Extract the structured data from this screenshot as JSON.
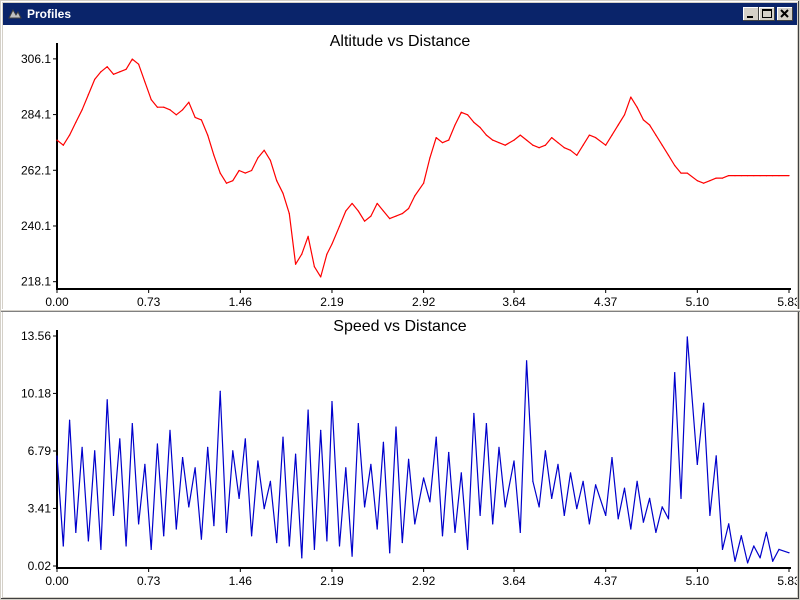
{
  "window": {
    "title": "Profiles",
    "icon": "app-icon",
    "controls": [
      "minimize-icon",
      "maximize-icon",
      "close-icon"
    ]
  },
  "chart_data": [
    {
      "type": "line",
      "title": "Altitude vs Distance",
      "xlabel": "",
      "ylabel": "",
      "line_color": "#ff0000",
      "x_ticks": [
        "0.00",
        "0.73",
        "1.46",
        "2.19",
        "2.92",
        "3.64",
        "4.37",
        "5.10",
        "5.83"
      ],
      "y_ticks": [
        "218.1",
        "240.1",
        "262.1",
        "284.1",
        "306.1"
      ],
      "xlim": [
        0,
        5.83
      ],
      "ylim": [
        216,
        310
      ],
      "x": [
        0.0,
        0.05,
        0.1,
        0.15,
        0.2,
        0.25,
        0.3,
        0.35,
        0.4,
        0.45,
        0.5,
        0.55,
        0.6,
        0.65,
        0.7,
        0.75,
        0.8,
        0.85,
        0.9,
        0.95,
        1.0,
        1.05,
        1.1,
        1.15,
        1.2,
        1.25,
        1.3,
        1.35,
        1.4,
        1.45,
        1.5,
        1.55,
        1.6,
        1.65,
        1.7,
        1.75,
        1.8,
        1.85,
        1.9,
        1.95,
        2.0,
        2.05,
        2.1,
        2.15,
        2.19,
        2.25,
        2.3,
        2.35,
        2.4,
        2.45,
        2.5,
        2.55,
        2.6,
        2.65,
        2.7,
        2.75,
        2.8,
        2.85,
        2.92,
        2.97,
        3.02,
        3.07,
        3.12,
        3.17,
        3.22,
        3.27,
        3.32,
        3.37,
        3.42,
        3.47,
        3.52,
        3.57,
        3.64,
        3.69,
        3.74,
        3.79,
        3.84,
        3.89,
        3.94,
        3.99,
        4.04,
        4.09,
        4.14,
        4.19,
        4.24,
        4.29,
        4.37,
        4.42,
        4.47,
        4.52,
        4.57,
        4.62,
        4.67,
        4.72,
        4.77,
        4.82,
        4.87,
        4.92,
        4.97,
        5.02,
        5.1,
        5.15,
        5.2,
        5.25,
        5.3,
        5.35,
        5.4,
        5.45,
        5.5,
        5.55,
        5.6,
        5.65,
        5.7,
        5.75,
        5.83
      ],
      "values": [
        274,
        272,
        276,
        281,
        286,
        292,
        298,
        301,
        303,
        300,
        301,
        302,
        306,
        304,
        297,
        290,
        287,
        287,
        286,
        284,
        286,
        289,
        283,
        282,
        276,
        268,
        261,
        257,
        258,
        262,
        261,
        262,
        267,
        270,
        266,
        258,
        253,
        245,
        225,
        229,
        236,
        224,
        220,
        229,
        233,
        240,
        246,
        249,
        246,
        242,
        244,
        249,
        246,
        243,
        244,
        245,
        247,
        252,
        257,
        267,
        275,
        273,
        274,
        280,
        285,
        284,
        281,
        279,
        276,
        274,
        273,
        272,
        274,
        276,
        274,
        272,
        271,
        272,
        275,
        273,
        271,
        270,
        268,
        272,
        276,
        275,
        272,
        276,
        280,
        284,
        291,
        287,
        282,
        280,
        276,
        272,
        268,
        264,
        261,
        261,
        258,
        257,
        258,
        259,
        259,
        260,
        260,
        260,
        260,
        260,
        260,
        260,
        260,
        260,
        260
      ],
      "values_note_none": ""
    },
    {
      "type": "line",
      "title": "Speed vs Distance",
      "xlabel": "",
      "ylabel": "",
      "line_color": "#0000cc",
      "x_ticks": [
        "0.00",
        "0.73",
        "1.46",
        "2.19",
        "2.92",
        "3.64",
        "4.37",
        "5.10",
        "5.83"
      ],
      "y_ticks": [
        "0.02",
        "3.41",
        "6.79",
        "10.18",
        "13.56"
      ],
      "xlim": [
        0,
        5.83
      ],
      "ylim": [
        0.02,
        13.56
      ],
      "x": [
        0.0,
        0.05,
        0.1,
        0.15,
        0.2,
        0.25,
        0.3,
        0.35,
        0.4,
        0.45,
        0.5,
        0.55,
        0.6,
        0.65,
        0.7,
        0.75,
        0.8,
        0.85,
        0.9,
        0.95,
        1.0,
        1.05,
        1.1,
        1.15,
        1.2,
        1.25,
        1.3,
        1.35,
        1.4,
        1.45,
        1.5,
        1.55,
        1.6,
        1.65,
        1.7,
        1.75,
        1.8,
        1.85,
        1.9,
        1.95,
        2.0,
        2.05,
        2.1,
        2.15,
        2.19,
        2.25,
        2.3,
        2.35,
        2.4,
        2.45,
        2.5,
        2.55,
        2.6,
        2.65,
        2.7,
        2.75,
        2.8,
        2.85,
        2.92,
        2.97,
        3.02,
        3.07,
        3.12,
        3.17,
        3.22,
        3.27,
        3.32,
        3.37,
        3.42,
        3.47,
        3.52,
        3.57,
        3.64,
        3.69,
        3.74,
        3.79,
        3.84,
        3.89,
        3.94,
        3.99,
        4.04,
        4.09,
        4.14,
        4.19,
        4.24,
        4.29,
        4.37,
        4.42,
        4.47,
        4.52,
        4.57,
        4.62,
        4.67,
        4.72,
        4.77,
        4.82,
        4.87,
        4.92,
        4.97,
        5.02,
        5.1,
        5.15,
        5.2,
        5.25,
        5.3,
        5.35,
        5.4,
        5.45,
        5.5,
        5.55,
        5.6,
        5.65,
        5.7,
        5.75,
        5.83
      ],
      "values": [
        6.5,
        1.2,
        8.6,
        2.0,
        7.0,
        1.5,
        6.8,
        1.0,
        9.8,
        3.0,
        7.5,
        1.2,
        8.4,
        2.5,
        6.0,
        1.0,
        7.2,
        1.8,
        8.0,
        2.2,
        6.4,
        3.5,
        5.8,
        1.6,
        7.0,
        2.4,
        10.3,
        2.0,
        6.8,
        4.0,
        7.5,
        1.8,
        6.2,
        3.4,
        5.0,
        1.4,
        7.6,
        1.2,
        6.6,
        0.5,
        9.2,
        1.0,
        8.0,
        1.5,
        9.7,
        1.2,
        5.8,
        0.6,
        8.4,
        3.5,
        6.0,
        2.2,
        7.3,
        0.8,
        8.2,
        1.4,
        6.3,
        2.5,
        5.2,
        3.8,
        7.6,
        1.8,
        6.7,
        2.0,
        5.5,
        1.0,
        9.0,
        3.0,
        8.4,
        2.5,
        7.0,
        3.5,
        6.2,
        2.0,
        12.1,
        5.0,
        3.5,
        6.8,
        4.0,
        6.0,
        3.0,
        5.5,
        3.4,
        5.0,
        2.5,
        4.8,
        3.0,
        6.4,
        2.8,
        4.6,
        2.2,
        5.0,
        2.6,
        4.0,
        2.0,
        3.5,
        2.8,
        11.4,
        4.0,
        13.5,
        6.0,
        9.6,
        3.0,
        6.5,
        1.0,
        2.5,
        0.3,
        1.8,
        0.2,
        1.2,
        0.5,
        2.0,
        0.3,
        1.0,
        0.8
      ]
    }
  ]
}
